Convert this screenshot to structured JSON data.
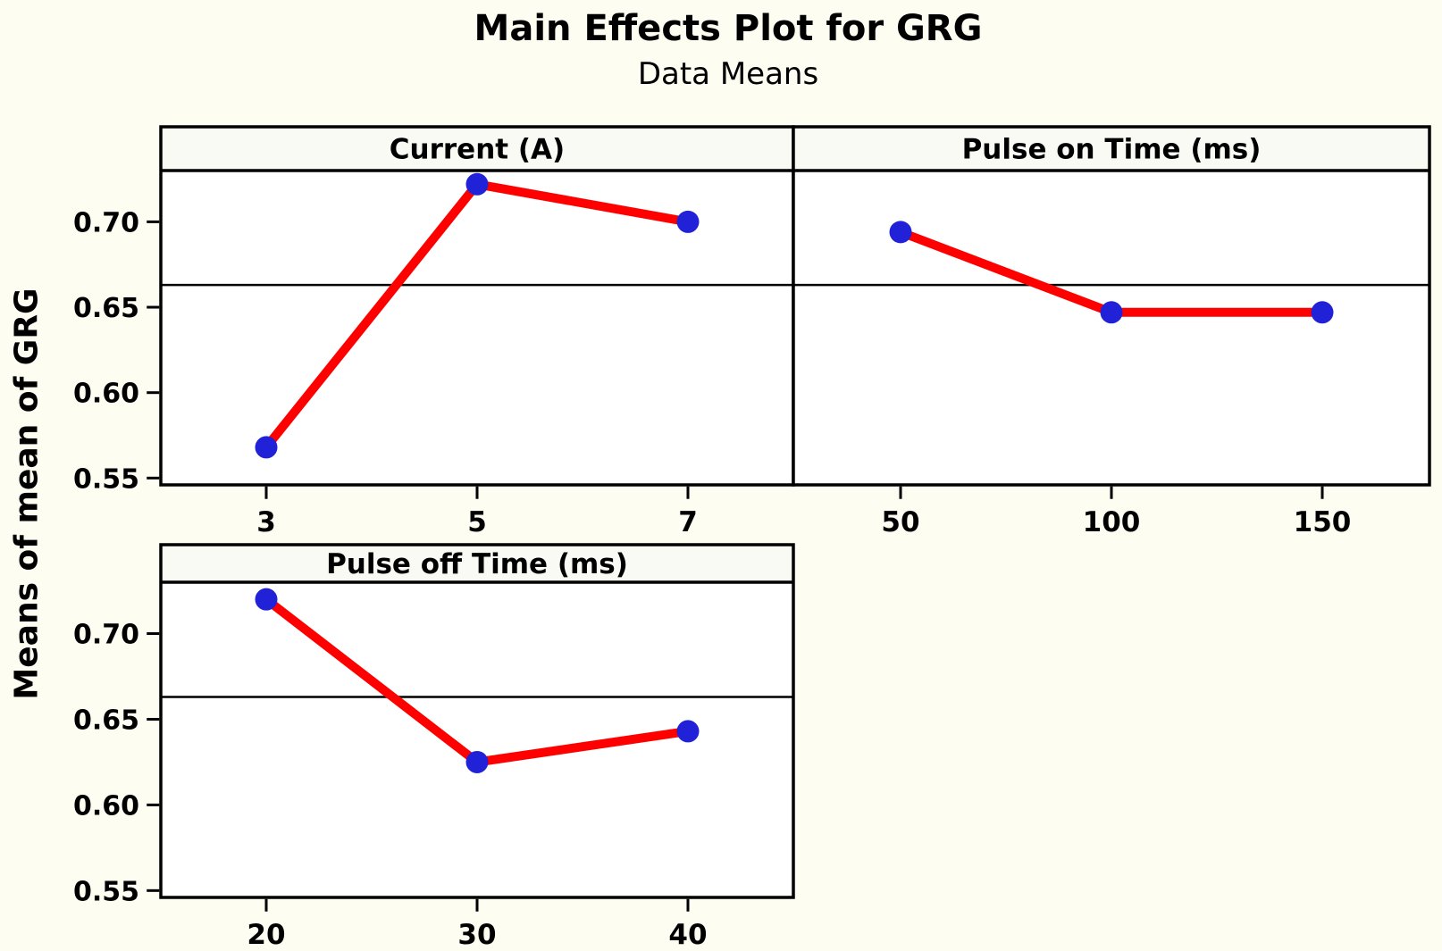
{
  "chart_data": {
    "type": "line",
    "title": "Main Effects Plot for GRG",
    "subtitle": "Data Means",
    "ylabel": "Means of mean of GRG",
    "ylim": [
      0.546,
      0.73
    ],
    "yticks": {
      "values": [
        0.7,
        0.65,
        0.6,
        0.55
      ],
      "labels": [
        "0.70",
        "0.65",
        "0.60",
        "0.55"
      ]
    },
    "reference_mean": 0.663,
    "grid": false,
    "legend": false,
    "panels": [
      {
        "title": "Current (A)",
        "categories": [
          "3",
          "5",
          "7"
        ],
        "values": [
          0.568,
          0.722,
          0.7
        ]
      },
      {
        "title": "Pulse on Time (ms)",
        "categories": [
          "50",
          "100",
          "150"
        ],
        "values": [
          0.694,
          0.647,
          0.647
        ]
      },
      {
        "title": "Pulse off Time (ms)",
        "categories": [
          "20",
          "30",
          "40"
        ],
        "values": [
          0.72,
          0.625,
          0.643
        ]
      }
    ],
    "colors": {
      "line": "#FF0000",
      "marker": "#2121D8",
      "reference_line": "#000000",
      "panel_border": "#000000",
      "plot_bg": "#FFFFFF",
      "header_bg": "#FAFAF4",
      "page_bg": "#FDFDF1",
      "text": "#000000"
    }
  }
}
